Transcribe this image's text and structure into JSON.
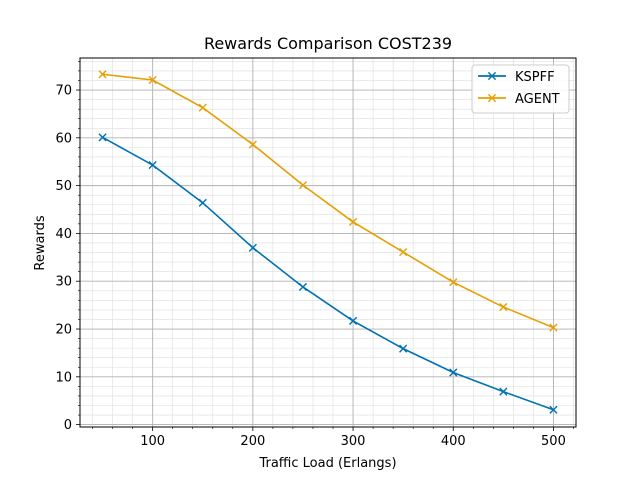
{
  "chart_data": {
    "type": "line",
    "title": "Rewards Comparison COST239",
    "xlabel": "Traffic Load (Erlangs)",
    "ylabel": "Rewards",
    "x": [
      50,
      100,
      150,
      200,
      250,
      300,
      350,
      400,
      450,
      500
    ],
    "xlim": [
      27.5,
      522.5
    ],
    "ylim": [
      -0.5,
      76.7
    ],
    "xticks": [
      100,
      200,
      300,
      400,
      500
    ],
    "yticks": [
      0,
      10,
      20,
      30,
      40,
      50,
      60,
      70
    ],
    "grid": "major and minor",
    "legend_position": "top-right",
    "marker": "x",
    "series": [
      {
        "name": "KSPFF",
        "color": "#0072B2",
        "values": [
          60.1,
          54.3,
          46.4,
          37.0,
          28.8,
          21.7,
          15.9,
          10.9,
          6.9,
          3.1
        ]
      },
      {
        "name": "AGENT",
        "color": "#E69F00",
        "values": [
          73.3,
          72.1,
          66.3,
          58.6,
          50.1,
          42.4,
          36.1,
          29.8,
          24.6,
          20.3
        ]
      }
    ]
  }
}
